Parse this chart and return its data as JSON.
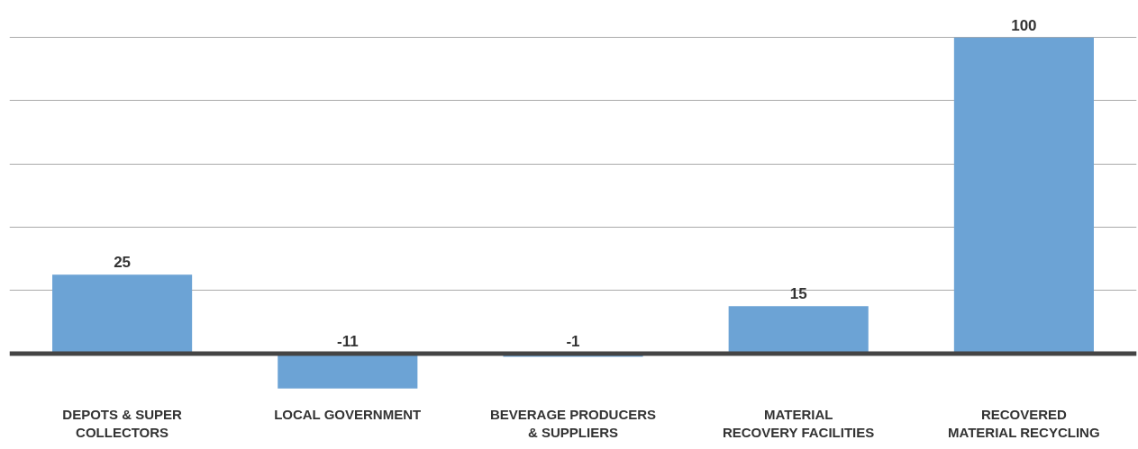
{
  "chart_data": {
    "type": "bar",
    "categories": [
      "DEPOTS & SUPER\nCOLLECTORS",
      "LOCAL GOVERNMENT",
      "BEVERAGE PRODUCERS\n& SUPPLIERS",
      "MATERIAL\nRECOVERY FACILITIES",
      "RECOVERED\nMATERIAL RECYCLING"
    ],
    "values": [
      25,
      -11,
      -1,
      15,
      100
    ],
    "color": "#6ca3d5",
    "data_labels": true,
    "yticks": [
      {
        "value": 20,
        "label": null
      },
      {
        "value": 40,
        "label": null
      },
      {
        "value": 60,
        "label": null
      },
      {
        "value": 80,
        "label": null
      },
      {
        "value": 100,
        "label": null
      }
    ],
    "tick_labels": "x",
    "grid": "y"
  }
}
